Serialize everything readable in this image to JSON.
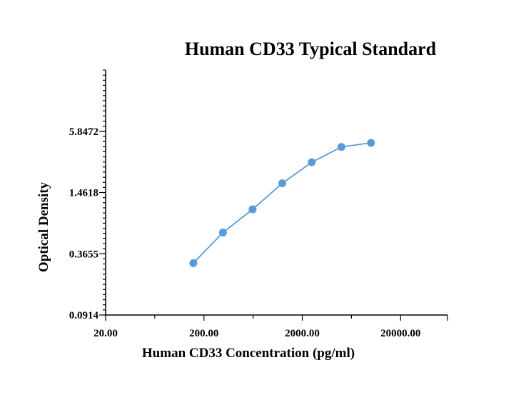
{
  "chart_data": {
    "type": "line",
    "title": "Human CD33 Typical Standard",
    "xlabel": "Human CD33 Concentration (pg/ml)",
    "ylabel": "Optical Density",
    "x_scale": "log",
    "y_scale": "log",
    "xlim": [
      20,
      60000
    ],
    "ylim": [
      0.0914,
      23.4
    ],
    "x_tick_labels": [
      "20.00",
      "200.00",
      "2000.00",
      "20000.00"
    ],
    "y_tick_labels": [
      "0.0914",
      "0.3655",
      "1.4618",
      "5.8472"
    ],
    "grid": false,
    "legend": "none",
    "series": [
      {
        "color": "#5B9BD5",
        "x": [
          156,
          312,
          625,
          1250,
          2500,
          5000,
          10000
        ],
        "y": [
          0.296,
          0.59,
          1.0,
          1.8,
          2.9,
          4.1,
          4.5
        ]
      }
    ]
  }
}
